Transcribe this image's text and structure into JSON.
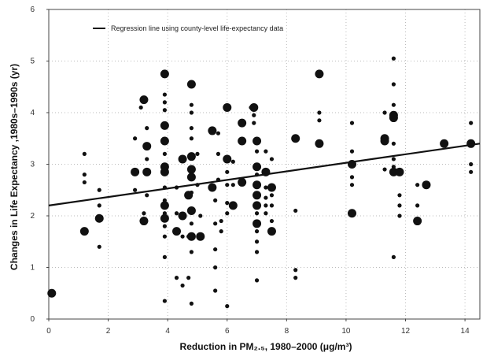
{
  "chart_data": {
    "type": "scatter",
    "xlabel": "Reduction in PM₂.₅, 1980–2000 (μg/m³)",
    "ylabel": "Changes in Life Expectancy ,1980s–1990s (yr)",
    "xlim": [
      0,
      14.5
    ],
    "ylim": [
      0,
      6
    ],
    "x_ticks": [
      "0",
      "2",
      "4",
      "6",
      "8",
      "10",
      "12",
      "14"
    ],
    "y_ticks": [
      "0",
      "1",
      "2",
      "3",
      "4",
      "5",
      "6"
    ],
    "grid": true,
    "legend": {
      "label": "Regression line using county-level life-expectancy data",
      "placement": "top-left"
    },
    "regression": {
      "x": [
        0,
        14.5
      ],
      "y": [
        2.2,
        3.4
      ]
    },
    "colors": {
      "points": "#111111",
      "line": "#111111",
      "grid": "#bbbbbb"
    },
    "points": [
      {
        "x": 0.1,
        "y": 0.5,
        "size": "large"
      },
      {
        "x": 1.2,
        "y": 3.2,
        "size": "small"
      },
      {
        "x": 1.2,
        "y": 2.8,
        "size": "small"
      },
      {
        "x": 1.2,
        "y": 2.65,
        "size": "small"
      },
      {
        "x": 1.2,
        "y": 1.7,
        "size": "large"
      },
      {
        "x": 1.7,
        "y": 2.5,
        "size": "small"
      },
      {
        "x": 1.7,
        "y": 2.2,
        "size": "small"
      },
      {
        "x": 1.7,
        "y": 1.95,
        "size": "large"
      },
      {
        "x": 1.7,
        "y": 1.4,
        "size": "small"
      },
      {
        "x": 2.9,
        "y": 3.5,
        "size": "small"
      },
      {
        "x": 2.9,
        "y": 2.85,
        "size": "large"
      },
      {
        "x": 2.9,
        "y": 2.5,
        "size": "small"
      },
      {
        "x": 3.1,
        "y": 4.1,
        "size": "small"
      },
      {
        "x": 3.2,
        "y": 4.25,
        "size": "large"
      },
      {
        "x": 3.3,
        "y": 3.7,
        "size": "small"
      },
      {
        "x": 3.3,
        "y": 3.35,
        "size": "large"
      },
      {
        "x": 3.3,
        "y": 3.1,
        "size": "small"
      },
      {
        "x": 3.3,
        "y": 2.85,
        "size": "large"
      },
      {
        "x": 3.3,
        "y": 2.4,
        "size": "small"
      },
      {
        "x": 3.2,
        "y": 2.05,
        "size": "small"
      },
      {
        "x": 3.2,
        "y": 1.9,
        "size": "large"
      },
      {
        "x": 3.9,
        "y": 4.75,
        "size": "large"
      },
      {
        "x": 3.9,
        "y": 4.35,
        "size": "small"
      },
      {
        "x": 3.9,
        "y": 4.2,
        "size": "small"
      },
      {
        "x": 3.9,
        "y": 4.05,
        "size": "small"
      },
      {
        "x": 3.9,
        "y": 3.75,
        "size": "large"
      },
      {
        "x": 3.9,
        "y": 3.45,
        "size": "large"
      },
      {
        "x": 3.9,
        "y": 3.2,
        "size": "small"
      },
      {
        "x": 3.9,
        "y": 2.95,
        "size": "large"
      },
      {
        "x": 3.9,
        "y": 2.85,
        "size": "large"
      },
      {
        "x": 3.9,
        "y": 2.55,
        "size": "small"
      },
      {
        "x": 3.9,
        "y": 2.3,
        "size": "small"
      },
      {
        "x": 3.9,
        "y": 2.2,
        "size": "large"
      },
      {
        "x": 3.9,
        "y": 2.05,
        "size": "small"
      },
      {
        "x": 3.9,
        "y": 1.95,
        "size": "large"
      },
      {
        "x": 3.9,
        "y": 1.8,
        "size": "small"
      },
      {
        "x": 3.9,
        "y": 1.6,
        "size": "small"
      },
      {
        "x": 3.9,
        "y": 1.2,
        "size": "small"
      },
      {
        "x": 3.9,
        "y": 0.35,
        "size": "small"
      },
      {
        "x": 4.3,
        "y": 2.55,
        "size": "small"
      },
      {
        "x": 4.3,
        "y": 2.05,
        "size": "small"
      },
      {
        "x": 4.3,
        "y": 1.7,
        "size": "large"
      },
      {
        "x": 4.3,
        "y": 0.8,
        "size": "small"
      },
      {
        "x": 4.5,
        "y": 3.1,
        "size": "large"
      },
      {
        "x": 4.5,
        "y": 2.0,
        "size": "large"
      },
      {
        "x": 4.5,
        "y": 1.6,
        "size": "small"
      },
      {
        "x": 4.5,
        "y": 0.65,
        "size": "small"
      },
      {
        "x": 4.7,
        "y": 2.4,
        "size": "large"
      },
      {
        "x": 4.7,
        "y": 1.6,
        "size": "small"
      },
      {
        "x": 4.7,
        "y": 0.8,
        "size": "small"
      },
      {
        "x": 4.8,
        "y": 4.55,
        "size": "large"
      },
      {
        "x": 4.8,
        "y": 4.15,
        "size": "small"
      },
      {
        "x": 4.8,
        "y": 4.0,
        "size": "small"
      },
      {
        "x": 4.8,
        "y": 3.7,
        "size": "small"
      },
      {
        "x": 4.8,
        "y": 3.5,
        "size": "small"
      },
      {
        "x": 4.8,
        "y": 3.15,
        "size": "large"
      },
      {
        "x": 4.8,
        "y": 2.9,
        "size": "large"
      },
      {
        "x": 4.8,
        "y": 2.75,
        "size": "large"
      },
      {
        "x": 4.8,
        "y": 2.45,
        "size": "small"
      },
      {
        "x": 4.8,
        "y": 2.1,
        "size": "large"
      },
      {
        "x": 4.8,
        "y": 1.85,
        "size": "small"
      },
      {
        "x": 4.8,
        "y": 1.6,
        "size": "large"
      },
      {
        "x": 4.8,
        "y": 1.3,
        "size": "small"
      },
      {
        "x": 4.8,
        "y": 0.3,
        "size": "small"
      },
      {
        "x": 5.0,
        "y": 3.2,
        "size": "small"
      },
      {
        "x": 5.0,
        "y": 2.6,
        "size": "small"
      },
      {
        "x": 5.1,
        "y": 2.0,
        "size": "small"
      },
      {
        "x": 5.1,
        "y": 1.6,
        "size": "large"
      },
      {
        "x": 5.5,
        "y": 3.65,
        "size": "large"
      },
      {
        "x": 5.5,
        "y": 2.55,
        "size": "large"
      },
      {
        "x": 5.6,
        "y": 2.3,
        "size": "small"
      },
      {
        "x": 5.6,
        "y": 1.85,
        "size": "small"
      },
      {
        "x": 5.6,
        "y": 1.35,
        "size": "small"
      },
      {
        "x": 5.6,
        "y": 1.0,
        "size": "small"
      },
      {
        "x": 5.6,
        "y": 0.55,
        "size": "small"
      },
      {
        "x": 5.7,
        "y": 3.6,
        "size": "small"
      },
      {
        "x": 5.7,
        "y": 3.2,
        "size": "small"
      },
      {
        "x": 5.7,
        "y": 2.7,
        "size": "small"
      },
      {
        "x": 5.8,
        "y": 1.9,
        "size": "small"
      },
      {
        "x": 5.8,
        "y": 1.7,
        "size": "small"
      },
      {
        "x": 6.0,
        "y": 4.1,
        "size": "large"
      },
      {
        "x": 6.0,
        "y": 3.1,
        "size": "large"
      },
      {
        "x": 6.0,
        "y": 2.85,
        "size": "small"
      },
      {
        "x": 6.0,
        "y": 2.6,
        "size": "small"
      },
      {
        "x": 6.0,
        "y": 2.25,
        "size": "small"
      },
      {
        "x": 6.0,
        "y": 2.05,
        "size": "small"
      },
      {
        "x": 6.0,
        "y": 0.25,
        "size": "small"
      },
      {
        "x": 6.2,
        "y": 3.05,
        "size": "small"
      },
      {
        "x": 6.2,
        "y": 2.6,
        "size": "small"
      },
      {
        "x": 6.2,
        "y": 2.2,
        "size": "large"
      },
      {
        "x": 6.5,
        "y": 3.8,
        "size": "large"
      },
      {
        "x": 6.5,
        "y": 3.45,
        "size": "large"
      },
      {
        "x": 6.5,
        "y": 2.65,
        "size": "large"
      },
      {
        "x": 6.8,
        "y": 4.1,
        "size": "small"
      },
      {
        "x": 6.9,
        "y": 4.1,
        "size": "large"
      },
      {
        "x": 6.9,
        "y": 3.95,
        "size": "small"
      },
      {
        "x": 6.9,
        "y": 3.8,
        "size": "small"
      },
      {
        "x": 7.0,
        "y": 3.45,
        "size": "large"
      },
      {
        "x": 7.0,
        "y": 3.25,
        "size": "small"
      },
      {
        "x": 7.0,
        "y": 2.95,
        "size": "large"
      },
      {
        "x": 7.0,
        "y": 2.8,
        "size": "small"
      },
      {
        "x": 7.0,
        "y": 2.6,
        "size": "large"
      },
      {
        "x": 7.0,
        "y": 2.4,
        "size": "large"
      },
      {
        "x": 7.0,
        "y": 2.2,
        "size": "large"
      },
      {
        "x": 7.0,
        "y": 2.05,
        "size": "small"
      },
      {
        "x": 7.0,
        "y": 1.85,
        "size": "large"
      },
      {
        "x": 7.0,
        "y": 1.7,
        "size": "small"
      },
      {
        "x": 7.0,
        "y": 1.5,
        "size": "small"
      },
      {
        "x": 7.0,
        "y": 1.3,
        "size": "small"
      },
      {
        "x": 7.0,
        "y": 0.75,
        "size": "small"
      },
      {
        "x": 7.3,
        "y": 3.25,
        "size": "small"
      },
      {
        "x": 7.3,
        "y": 2.85,
        "size": "large"
      },
      {
        "x": 7.3,
        "y": 2.55,
        "size": "small"
      },
      {
        "x": 7.3,
        "y": 2.35,
        "size": "small"
      },
      {
        "x": 7.3,
        "y": 2.2,
        "size": "small"
      },
      {
        "x": 7.3,
        "y": 2.05,
        "size": "small"
      },
      {
        "x": 7.5,
        "y": 3.1,
        "size": "small"
      },
      {
        "x": 7.5,
        "y": 2.55,
        "size": "large"
      },
      {
        "x": 7.5,
        "y": 2.4,
        "size": "small"
      },
      {
        "x": 7.5,
        "y": 2.2,
        "size": "small"
      },
      {
        "x": 7.5,
        "y": 1.9,
        "size": "small"
      },
      {
        "x": 7.5,
        "y": 1.7,
        "size": "large"
      },
      {
        "x": 8.3,
        "y": 3.5,
        "size": "large"
      },
      {
        "x": 8.3,
        "y": 2.1,
        "size": "small"
      },
      {
        "x": 8.3,
        "y": 0.95,
        "size": "small"
      },
      {
        "x": 8.3,
        "y": 0.8,
        "size": "small"
      },
      {
        "x": 9.1,
        "y": 4.75,
        "size": "large"
      },
      {
        "x": 9.1,
        "y": 4.0,
        "size": "small"
      },
      {
        "x": 9.1,
        "y": 3.85,
        "size": "small"
      },
      {
        "x": 9.1,
        "y": 3.4,
        "size": "large"
      },
      {
        "x": 10.2,
        "y": 3.8,
        "size": "small"
      },
      {
        "x": 10.2,
        "y": 3.25,
        "size": "small"
      },
      {
        "x": 10.2,
        "y": 3.0,
        "size": "large"
      },
      {
        "x": 10.2,
        "y": 2.75,
        "size": "small"
      },
      {
        "x": 10.2,
        "y": 2.6,
        "size": "small"
      },
      {
        "x": 10.2,
        "y": 2.05,
        "size": "large"
      },
      {
        "x": 11.3,
        "y": 4.0,
        "size": "small"
      },
      {
        "x": 11.3,
        "y": 3.5,
        "size": "large"
      },
      {
        "x": 11.3,
        "y": 3.45,
        "size": "large"
      },
      {
        "x": 11.3,
        "y": 2.9,
        "size": "small"
      },
      {
        "x": 11.6,
        "y": 5.05,
        "size": "small"
      },
      {
        "x": 11.6,
        "y": 4.55,
        "size": "small"
      },
      {
        "x": 11.6,
        "y": 4.15,
        "size": "small"
      },
      {
        "x": 11.6,
        "y": 3.95,
        "size": "large"
      },
      {
        "x": 11.6,
        "y": 3.9,
        "size": "large"
      },
      {
        "x": 11.6,
        "y": 3.4,
        "size": "small"
      },
      {
        "x": 11.6,
        "y": 3.1,
        "size": "small"
      },
      {
        "x": 11.6,
        "y": 2.95,
        "size": "small"
      },
      {
        "x": 11.6,
        "y": 2.85,
        "size": "large"
      },
      {
        "x": 11.6,
        "y": 1.2,
        "size": "small"
      },
      {
        "x": 11.8,
        "y": 2.85,
        "size": "large"
      },
      {
        "x": 11.8,
        "y": 2.4,
        "size": "small"
      },
      {
        "x": 11.8,
        "y": 2.2,
        "size": "small"
      },
      {
        "x": 11.8,
        "y": 2.0,
        "size": "small"
      },
      {
        "x": 12.4,
        "y": 2.6,
        "size": "small"
      },
      {
        "x": 12.4,
        "y": 2.2,
        "size": "small"
      },
      {
        "x": 12.4,
        "y": 1.9,
        "size": "large"
      },
      {
        "x": 12.7,
        "y": 2.6,
        "size": "large"
      },
      {
        "x": 13.3,
        "y": 3.4,
        "size": "large"
      },
      {
        "x": 14.2,
        "y": 3.8,
        "size": "small"
      },
      {
        "x": 14.2,
        "y": 3.4,
        "size": "large"
      },
      {
        "x": 14.2,
        "y": 3.0,
        "size": "small"
      },
      {
        "x": 14.2,
        "y": 2.85,
        "size": "small"
      }
    ]
  }
}
